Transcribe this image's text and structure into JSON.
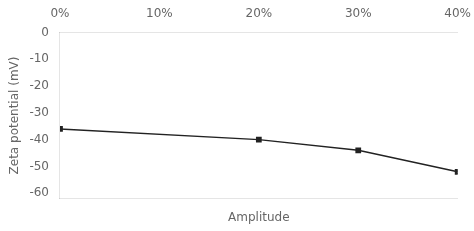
{
  "chart_data": {
    "type": "line",
    "x": [
      0,
      20,
      30,
      40
    ],
    "values": [
      -36,
      -40,
      -44,
      -52
    ],
    "xlim": [
      0,
      40
    ],
    "ylim": [
      -62,
      0
    ],
    "xticks": [
      {
        "value": 0,
        "label": "0%"
      },
      {
        "value": 10,
        "label": "10%"
      },
      {
        "value": 20,
        "label": "20%"
      },
      {
        "value": 30,
        "label": "30%"
      },
      {
        "value": 40,
        "label": "40%"
      }
    ],
    "yticks": [
      0,
      -10,
      -20,
      -30,
      -40,
      -50,
      -60
    ],
    "xlabel": "Amplitude",
    "ylabel": "Zeta potential (mV)",
    "color": "#222222",
    "marker": "square",
    "grid": false
  }
}
